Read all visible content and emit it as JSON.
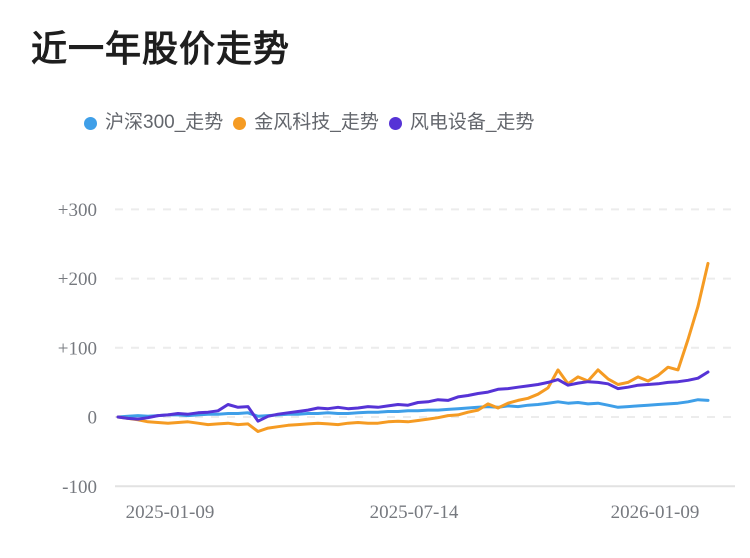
{
  "header": {
    "title": "近一年股价走势"
  },
  "chart_data": {
    "type": "line",
    "title": "近一年股价走势",
    "x_tick_labels": [
      "2025-01-09",
      "2025-07-14",
      "2026-01-09"
    ],
    "y_tick_labels": [
      "+300",
      "+200",
      "+100",
      "0",
      "-100"
    ],
    "ylim": [
      -100,
      300
    ],
    "x_range": [
      "2025-01-09",
      "2026-01-09"
    ],
    "grid": "horizontal-dashed",
    "legend_position": "top",
    "series": [
      {
        "name": "沪深300_走势",
        "color": "#3f9fe8",
        "values": [
          0,
          1,
          2,
          1,
          2,
          3,
          3,
          2,
          3,
          4,
          4,
          5,
          5,
          6,
          1,
          2,
          3,
          4,
          4,
          5,
          5,
          6,
          5,
          5,
          6,
          7,
          7,
          8,
          8,
          9,
          9,
          10,
          10,
          11,
          12,
          13,
          14,
          15,
          14,
          16,
          15,
          17,
          18,
          20,
          22,
          20,
          21,
          19,
          20,
          17,
          14,
          15,
          16,
          17,
          18,
          19,
          20,
          22,
          25,
          24
        ]
      },
      {
        "name": "金风科技_走势",
        "color": "#f59b23",
        "values": [
          0,
          -2,
          -4,
          -7,
          -8,
          -9,
          -8,
          -7,
          -9,
          -11,
          -10,
          -9,
          -11,
          -10,
          -21,
          -16,
          -14,
          -12,
          -11,
          -10,
          -9,
          -10,
          -11,
          -9,
          -8,
          -9,
          -9,
          -7,
          -6,
          -7,
          -5,
          -3,
          -1,
          2,
          3,
          7,
          10,
          19,
          13,
          20,
          24,
          27,
          33,
          42,
          68,
          48,
          58,
          52,
          68,
          55,
          47,
          50,
          58,
          52,
          60,
          72,
          68,
          112,
          160,
          222
        ]
      },
      {
        "name": "风电设备_走势",
        "color": "#5633d6",
        "values": [
          0,
          -2,
          -3,
          -1,
          2,
          3,
          5,
          4,
          6,
          7,
          9,
          18,
          14,
          15,
          -6,
          1,
          4,
          6,
          8,
          10,
          13,
          12,
          14,
          12,
          13,
          15,
          14,
          16,
          18,
          17,
          21,
          22,
          25,
          24,
          29,
          31,
          34,
          36,
          40,
          41,
          43,
          45,
          47,
          50,
          54,
          46,
          49,
          51,
          50,
          48,
          41,
          43,
          46,
          47,
          48,
          50,
          51,
          53,
          56,
          65
        ]
      }
    ]
  }
}
